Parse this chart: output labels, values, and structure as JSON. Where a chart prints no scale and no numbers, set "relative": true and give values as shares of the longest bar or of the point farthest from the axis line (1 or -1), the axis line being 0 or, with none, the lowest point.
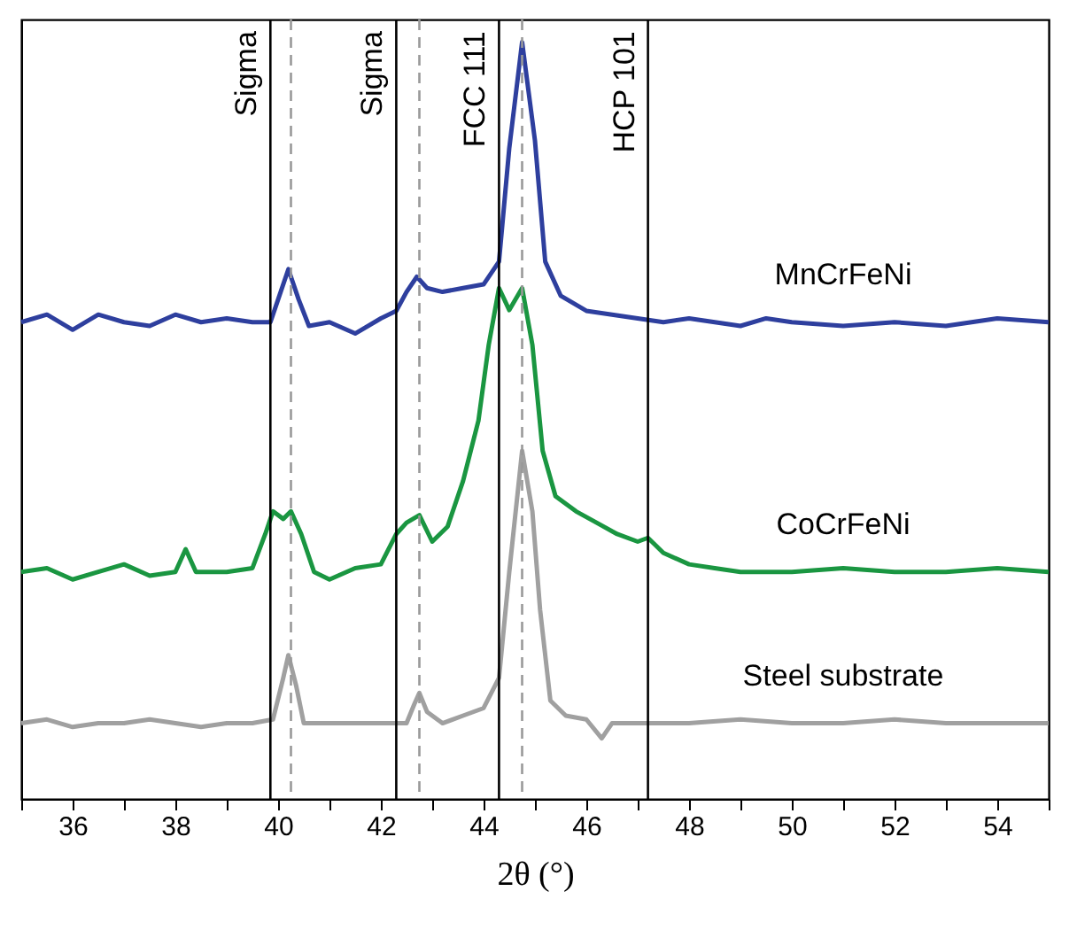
{
  "chart_data": {
    "type": "line",
    "relative": true,
    "xlabel": "2θ (°)",
    "xlim": [
      35,
      55
    ],
    "xticks": [
      {
        "value": 35,
        "label": null
      },
      36,
      {
        "value": 37,
        "label": null
      },
      38,
      {
        "value": 39,
        "label": null
      },
      40,
      {
        "value": 41,
        "label": null
      },
      42,
      {
        "value": 43,
        "label": null
      },
      44,
      {
        "value": 45,
        "label": null
      },
      46,
      {
        "value": 47,
        "label": null
      },
      48,
      {
        "value": 49,
        "label": null
      },
      50,
      {
        "value": 51,
        "label": null
      },
      52,
      {
        "value": 53,
        "label": null
      },
      54,
      {
        "value": 55,
        "label": null
      }
    ],
    "tick_labels": "x",
    "grid": false,
    "legend": false,
    "marker": "none",
    "line_style": "solid",
    "series": [
      {
        "name": "MnCrFeNi",
        "color": "#2e3f9e",
        "x": [
          35,
          35.5,
          36,
          36.5,
          37,
          37.5,
          38,
          38.5,
          39,
          39.5,
          39.85,
          40.0,
          40.2,
          40.4,
          40.6,
          41,
          41.5,
          42,
          42.3,
          42.5,
          42.7,
          42.9,
          43.2,
          43.6,
          44.0,
          44.3,
          44.5,
          44.75,
          45.0,
          45.2,
          45.5,
          46,
          46.5,
          47,
          47.5,
          48,
          48.5,
          49,
          49.5,
          50,
          51,
          52,
          53,
          54,
          55
        ],
        "values": [
          0.63,
          0.64,
          0.62,
          0.64,
          0.63,
          0.625,
          0.64,
          0.63,
          0.635,
          0.63,
          0.63,
          0.66,
          0.7,
          0.66,
          0.625,
          0.63,
          0.615,
          0.635,
          0.645,
          0.67,
          0.69,
          0.675,
          0.67,
          0.675,
          0.68,
          0.71,
          0.86,
          1,
          0.87,
          0.71,
          0.665,
          0.645,
          0.64,
          0.635,
          0.63,
          0.635,
          0.63,
          0.625,
          0.635,
          0.63,
          0.625,
          0.63,
          0.625,
          0.635,
          0.63
        ]
      },
      {
        "name": "CoCrFeNi",
        "color": "#1a9641",
        "x": [
          35,
          35.5,
          36,
          36.5,
          37,
          37.5,
          38,
          38.2,
          38.4,
          39,
          39.5,
          39.75,
          39.9,
          40.1,
          40.25,
          40.45,
          40.7,
          41,
          41.5,
          42,
          42.3,
          42.5,
          42.75,
          43,
          43.3,
          43.6,
          43.9,
          44.1,
          44.3,
          44.5,
          44.75,
          44.95,
          45.15,
          45.4,
          45.8,
          46.2,
          46.6,
          47,
          47.2,
          47.5,
          48,
          48.5,
          49,
          50,
          51,
          52,
          53,
          54,
          55
        ],
        "values": [
          0.3,
          0.305,
          0.29,
          0.3,
          0.31,
          0.295,
          0.3,
          0.33,
          0.3,
          0.3,
          0.305,
          0.35,
          0.38,
          0.37,
          0.38,
          0.35,
          0.3,
          0.29,
          0.305,
          0.31,
          0.35,
          0.365,
          0.375,
          0.34,
          0.36,
          0.42,
          0.5,
          0.6,
          0.675,
          0.646,
          0.675,
          0.6,
          0.46,
          0.4,
          0.38,
          0.365,
          0.35,
          0.34,
          0.345,
          0.325,
          0.31,
          0.305,
          0.3,
          0.3,
          0.305,
          0.3,
          0.3,
          0.305,
          0.3
        ]
      },
      {
        "name": "Steel substrate",
        "color": "#a0a0a0",
        "x": [
          35,
          35.5,
          36,
          36.5,
          37,
          37.5,
          38,
          38.5,
          39,
          39.5,
          39.9,
          40.1,
          40.2,
          40.35,
          40.5,
          41,
          41.5,
          42,
          42.5,
          42.65,
          42.75,
          42.9,
          43.2,
          43.6,
          44.0,
          44.3,
          44.5,
          44.75,
          44.95,
          45.1,
          45.3,
          45.6,
          46,
          46.3,
          46.5,
          47,
          48,
          49,
          50,
          51,
          52,
          53,
          54,
          55
        ],
        "values": [
          0.1,
          0.105,
          0.095,
          0.1,
          0.1,
          0.105,
          0.1,
          0.095,
          0.1,
          0.1,
          0.105,
          0.16,
          0.19,
          0.15,
          0.1,
          0.1,
          0.1,
          0.1,
          0.1,
          0.125,
          0.14,
          0.115,
          0.1,
          0.11,
          0.12,
          0.16,
          0.3,
          0.46,
          0.38,
          0.25,
          0.13,
          0.11,
          0.105,
          0.08,
          0.1,
          0.1,
          0.1,
          0.105,
          0.1,
          0.1,
          0.105,
          0.1,
          0.1,
          0.1
        ]
      }
    ],
    "ref_lines": [
      {
        "axis": "x",
        "value": 39.85,
        "label": "Sigma",
        "color": "#000000",
        "line_style": "solid"
      },
      {
        "axis": "x",
        "value": 42.3,
        "label": "Sigma",
        "color": "#000000",
        "line_style": "solid"
      },
      {
        "axis": "x",
        "value": 44.3,
        "label": "FCC 111",
        "color": "#000000",
        "line_style": "solid"
      },
      {
        "axis": "x",
        "value": 47.2,
        "label": "HCP 101",
        "color": "#000000",
        "line_style": "solid"
      },
      {
        "axis": "x",
        "value": 40.25,
        "color": "#999999",
        "line_style": "dashed"
      },
      {
        "axis": "x",
        "value": 42.75,
        "color": "#999999",
        "line_style": "dashed"
      },
      {
        "axis": "x",
        "value": 44.75,
        "color": "#999999",
        "line_style": "dashed"
      }
    ]
  }
}
